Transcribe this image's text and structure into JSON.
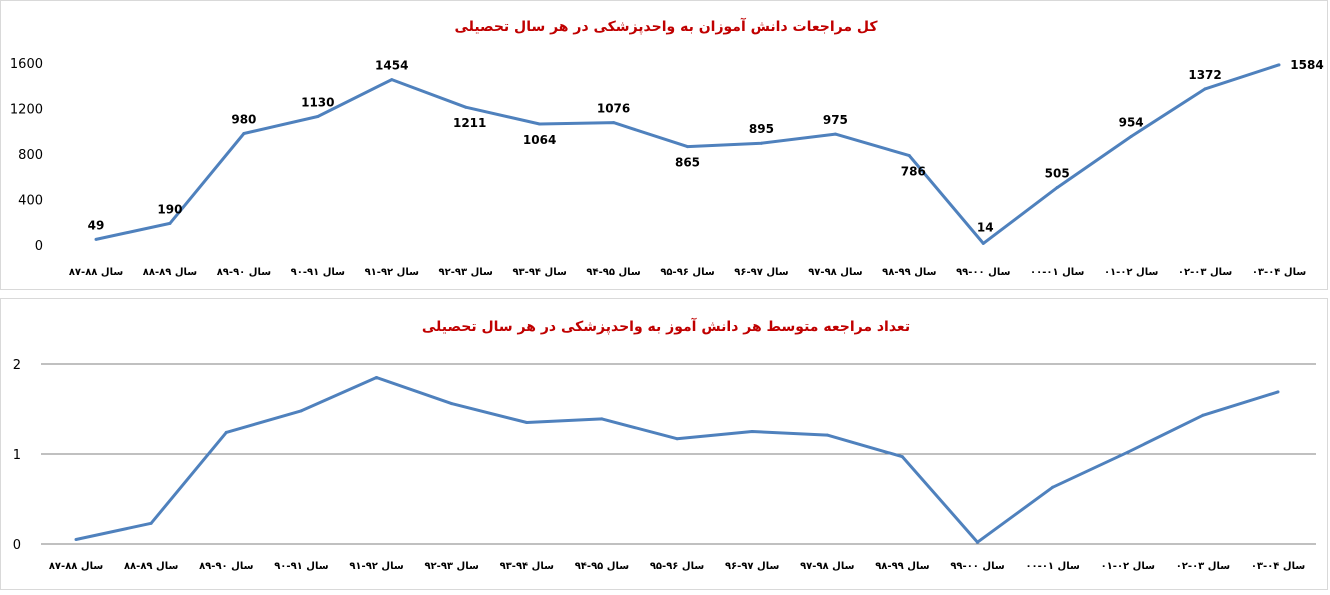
{
  "chart_data": [
    {
      "type": "line",
      "title": "کل مراجعات دانش آموزان به واحدپزشکی در هر سال تحصیلی",
      "categories": [
        "سال ۸۸-۸۷",
        "سال ۸۹-۸۸",
        "سال ۹۰-۸۹",
        "سال ۹۱-۹۰",
        "سال ۹۲-۹۱",
        "سال ۹۳-۹۲",
        "سال ۹۴-۹۳",
        "سال ۹۵-۹۴",
        "سال ۹۶-۹۵",
        "سال ۹۷-۹۶",
        "سال ۹۸-۹۷",
        "سال ۹۹-۹۸",
        "سال ۰۰-۹۹",
        "سال ۰۱-۰۰",
        "سال ۰۲-۰۱",
        "سال ۰۳-۰۲",
        "سال ۰۴-۰۳"
      ],
      "values": [
        49,
        190,
        980,
        1130,
        1454,
        1211,
        1064,
        1076,
        865,
        895,
        975,
        786,
        14,
        505,
        954,
        1372,
        1584
      ],
      "y_ticks": [
        "0",
        "400",
        "800",
        "1200",
        "1600"
      ],
      "ylim": [
        0,
        1600
      ],
      "data_labels": true,
      "grid": false,
      "color": "#4f81bd"
    },
    {
      "type": "line",
      "title": "تعداد مراجعه متوسط هر دانش آموز به واحدپزشکی در هر سال تحصیلی",
      "categories": [
        "سال ۸۸-۸۷",
        "سال ۸۹-۸۸",
        "سال ۹۰-۸۹",
        "سال ۹۱-۹۰",
        "سال ۹۲-۹۱",
        "سال ۹۳-۹۲",
        "سال ۹۴-۹۳",
        "سال ۹۵-۹۴",
        "سال ۹۶-۹۵",
        "سال ۹۷-۹۶",
        "سال ۹۸-۹۷",
        "سال ۹۹-۹۸",
        "سال ۰۰-۹۹",
        "سال ۰۱-۰۰",
        "سال ۰۲-۰۱",
        "سال ۰۳-۰۲",
        "سال ۰۴-۰۳"
      ],
      "values": [
        0.05,
        0.23,
        1.24,
        1.48,
        1.85,
        1.56,
        1.35,
        1.39,
        1.17,
        1.25,
        1.21,
        0.97,
        0.02,
        0.63,
        1.02,
        1.43,
        1.69
      ],
      "y_ticks": [
        "0",
        "1",
        "2"
      ],
      "ylim": [
        0,
        2
      ],
      "data_labels": false,
      "grid": true,
      "color": "#4f81bd"
    }
  ]
}
